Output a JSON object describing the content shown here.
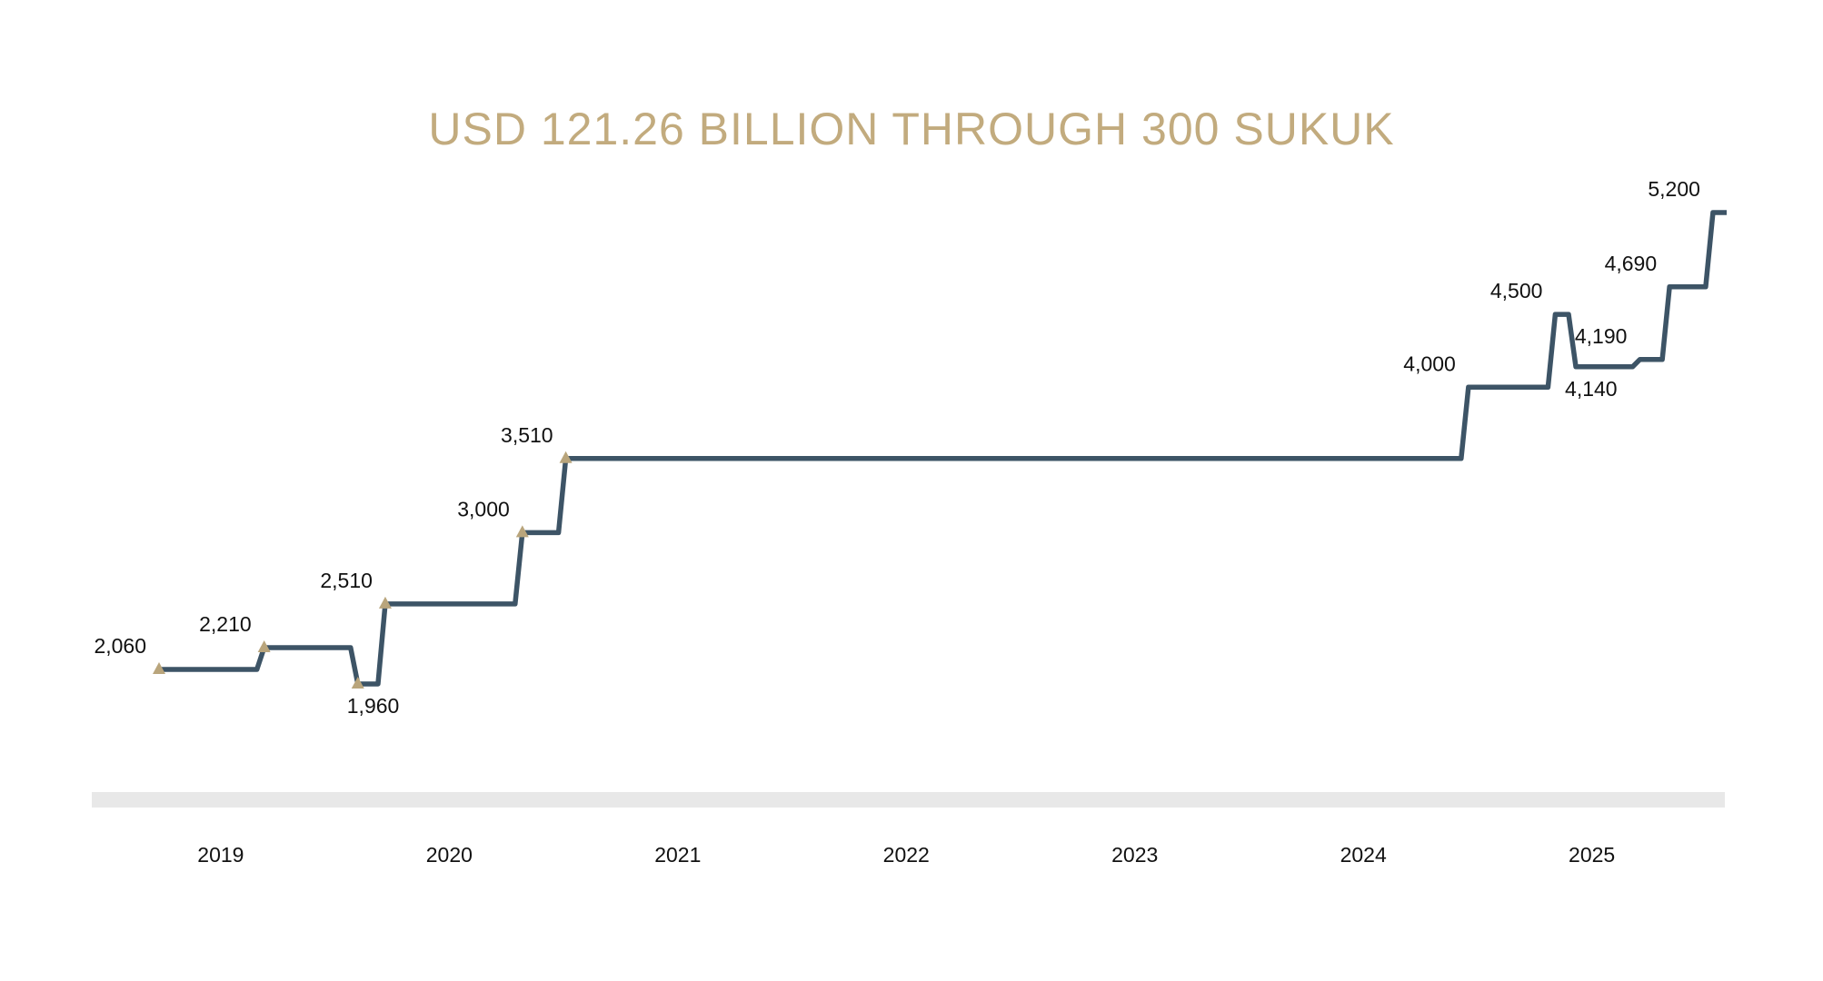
{
  "chart_data": {
    "type": "step",
    "title": "USD 121.26 BILLION THROUGH 300 SUKUK",
    "x": [
      2018.73,
      2019.19,
      2019.6,
      2019.72,
      2020.32,
      2020.51,
      2024.46,
      2024.84,
      2024.93,
      2025.21,
      2025.34,
      2025.53
    ],
    "values": [
      2060,
      2210,
      1960,
      2510,
      3000,
      3510,
      4000,
      4500,
      4140,
      4190,
      4690,
      5200
    ],
    "value_labels": [
      "2,060",
      "2,210",
      "1,960",
      "2,510",
      "3,000",
      "3,510",
      "4,000",
      "4,500",
      "4,140",
      "4,190",
      "4,690",
      "5,200"
    ],
    "markers": [
      true,
      true,
      true,
      true,
      true,
      true,
      false,
      false,
      false,
      false,
      false,
      false
    ],
    "color": "#3d5466",
    "marker_color": "#b9a57c",
    "xlim": [
      2018.73,
      2025.59
    ],
    "xticks": [
      2019,
      2020,
      2021,
      2022,
      2023,
      2024,
      2025
    ]
  }
}
